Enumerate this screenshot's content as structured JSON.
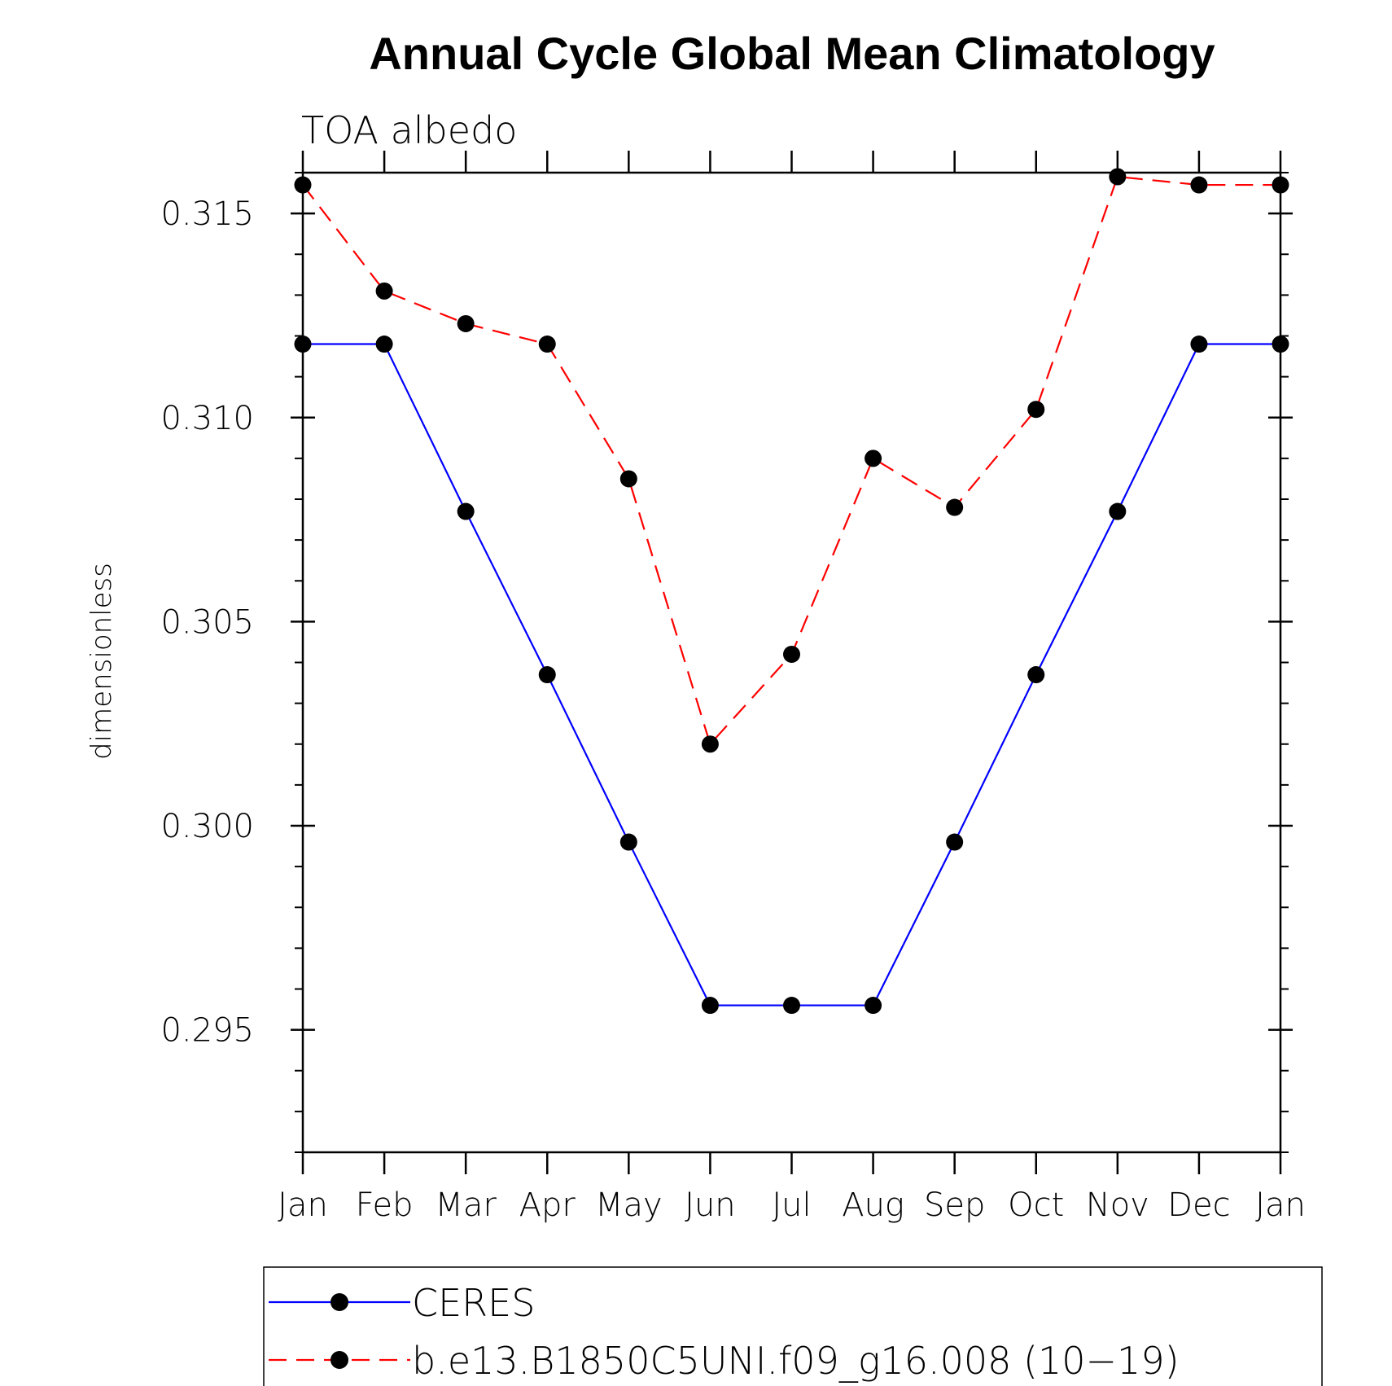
{
  "chart_data": {
    "type": "line",
    "title": "Annual Cycle Global Mean Climatology",
    "subtitle": "TOA albedo",
    "ylabel": "dimensionless",
    "xlabel": "",
    "categories": [
      "Jan",
      "Feb",
      "Mar",
      "Apr",
      "May",
      "Jun",
      "Jul",
      "Aug",
      "Sep",
      "Oct",
      "Nov",
      "Dec",
      "Jan"
    ],
    "ylim": [
      0.292,
      0.316
    ],
    "yticks": [
      "0.315",
      "0.310",
      "0.305",
      "0.300",
      "0.295"
    ],
    "ytick_values": [
      0.315,
      0.31,
      0.305,
      0.3,
      0.295
    ],
    "grid": false,
    "legend_position": "bottom",
    "series": [
      {
        "name": "CERES",
        "color": "#0000ff",
        "dash": "solid",
        "values": [
          0.3118,
          0.3118,
          0.3077,
          0.3037,
          0.2996,
          0.2956,
          0.2956,
          0.2956,
          0.2996,
          0.3037,
          0.3077,
          0.3118,
          0.3118
        ]
      },
      {
        "name": "b.e13.B1850C5UNI.f09_g16.008 (10−19)",
        "color": "#ff0000",
        "dash": "dashed",
        "values": [
          0.3157,
          0.3131,
          0.3123,
          0.3118,
          0.3085,
          0.302,
          0.3042,
          0.309,
          0.3078,
          0.3102,
          0.3159,
          0.3157,
          0.3157
        ]
      }
    ]
  }
}
